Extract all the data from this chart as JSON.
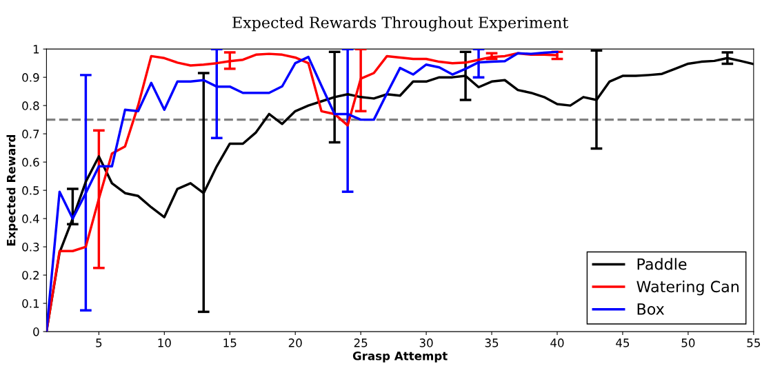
{
  "chart_data": {
    "type": "line",
    "title": "Expected Rewards Throughout Experiment",
    "xlabel": "Grasp Attempt",
    "ylabel": "Expected Reward",
    "x": [
      1,
      2,
      3,
      4,
      5,
      6,
      7,
      8,
      9,
      10,
      11,
      12,
      13,
      14,
      15,
      16,
      17,
      18,
      19,
      20,
      21,
      22,
      23,
      24,
      25,
      26,
      27,
      28,
      29,
      30,
      31,
      32,
      33,
      34,
      35,
      36,
      37,
      38,
      39,
      40,
      41,
      42,
      43,
      44,
      45,
      46,
      47,
      48,
      49,
      50,
      51,
      52,
      53,
      54,
      55
    ],
    "series": [
      {
        "name": "Paddle",
        "color": "#000000",
        "values": [
          0,
          0.28,
          0.4,
          0.53,
          0.62,
          0.525,
          0.49,
          0.48,
          0.44,
          0.405,
          0.505,
          0.525,
          0.49,
          0.585,
          0.665,
          0.665,
          0.705,
          0.77,
          0.735,
          0.78,
          0.8,
          0.815,
          0.83,
          0.84,
          0.83,
          0.825,
          0.84,
          0.835,
          0.885,
          0.885,
          0.9,
          0.9,
          0.905,
          0.865,
          0.885,
          0.89,
          0.855,
          0.845,
          0.83,
          0.805,
          0.8,
          0.83,
          0.82,
          0.885,
          0.905,
          0.905,
          0.908,
          0.912,
          0.93,
          0.948,
          0.955,
          0.958,
          0.968,
          0.958,
          0.947
        ],
        "errors": [
          null,
          null,
          [
            0.38,
            0.505
          ],
          null,
          null,
          null,
          null,
          null,
          null,
          null,
          null,
          null,
          [
            0.07,
            0.915
          ],
          null,
          null,
          null,
          null,
          null,
          null,
          null,
          null,
          null,
          [
            0.67,
            0.99
          ],
          null,
          null,
          null,
          null,
          null,
          null,
          null,
          null,
          null,
          [
            0.82,
            0.99
          ],
          null,
          null,
          null,
          null,
          null,
          null,
          null,
          null,
          null,
          [
            0.648,
            0.995
          ],
          null,
          null,
          null,
          null,
          null,
          null,
          null,
          null,
          null,
          [
            0.948,
            0.988
          ],
          null,
          null
        ]
      },
      {
        "name": "Watering Can",
        "color": "#ff0000",
        "x": [
          1,
          2,
          3,
          4,
          5,
          6,
          7,
          8,
          9,
          10,
          11,
          12,
          13,
          14,
          15,
          16,
          17,
          18,
          19,
          20,
          21,
          22,
          23,
          24,
          25,
          26,
          27,
          28,
          29,
          30,
          31,
          32,
          33,
          34,
          35,
          36,
          37,
          38,
          39,
          40
        ],
        "values": [
          0,
          0.285,
          0.285,
          0.3,
          0.47,
          0.63,
          0.655,
          0.8,
          0.975,
          0.968,
          0.952,
          0.942,
          0.945,
          0.95,
          0.957,
          0.962,
          0.98,
          0.983,
          0.98,
          0.97,
          0.95,
          0.78,
          0.77,
          0.73,
          0.895,
          0.915,
          0.975,
          0.97,
          0.965,
          0.965,
          0.955,
          0.95,
          0.952,
          0.962,
          0.972,
          0.975,
          0.985,
          0.98,
          0.98,
          0.978
        ],
        "errors": [
          null,
          null,
          null,
          null,
          [
            0.225,
            0.712
          ],
          null,
          null,
          null,
          null,
          null,
          null,
          null,
          null,
          null,
          [
            0.93,
            0.988
          ],
          null,
          null,
          null,
          null,
          null,
          null,
          null,
          null,
          null,
          [
            0.78,
            1.0
          ],
          null,
          null,
          null,
          null,
          null,
          null,
          null,
          null,
          null,
          [
            0.965,
            0.985
          ],
          null,
          null,
          null,
          null,
          [
            0.965,
            0.99
          ]
        ]
      },
      {
        "name": "Box",
        "color": "#0000ff",
        "x": [
          1,
          2,
          3,
          4,
          5,
          6,
          7,
          8,
          9,
          10,
          11,
          12,
          13,
          14,
          15,
          16,
          17,
          18,
          19,
          20,
          21,
          22,
          23,
          24,
          25,
          26,
          27,
          28,
          29,
          30,
          31,
          32,
          33,
          34,
          35,
          36,
          37,
          38,
          39,
          40
        ],
        "values": [
          0,
          0.495,
          0.4,
          0.49,
          0.585,
          0.585,
          0.785,
          0.78,
          0.88,
          0.785,
          0.885,
          0.885,
          0.89,
          0.867,
          0.867,
          0.845,
          0.845,
          0.845,
          0.868,
          0.95,
          0.972,
          0.87,
          0.77,
          0.77,
          0.75,
          0.75,
          0.843,
          0.933,
          0.91,
          0.945,
          0.935,
          0.91,
          0.93,
          0.953,
          0.955,
          0.957,
          0.985,
          0.983,
          0.987,
          0.99
        ],
        "errors": [
          null,
          null,
          null,
          [
            0.075,
            0.908
          ],
          null,
          null,
          null,
          null,
          null,
          null,
          null,
          null,
          null,
          [
            0.685,
            1.0
          ],
          null,
          null,
          null,
          null,
          null,
          null,
          null,
          null,
          null,
          [
            0.495,
            1.0
          ],
          null,
          null,
          null,
          null,
          null,
          null,
          null,
          null,
          null,
          [
            0.9,
            1.0
          ],
          null,
          null,
          null,
          null,
          null,
          null
        ]
      }
    ],
    "ref_lines": [
      {
        "axis": "y",
        "value": 0.75,
        "color": "#808080",
        "line_style": "dashed"
      }
    ],
    "xlim": [
      1,
      55
    ],
    "xticks": [
      5,
      10,
      15,
      20,
      25,
      30,
      35,
      40,
      45,
      50,
      55
    ],
    "ylim": [
      0,
      1
    ],
    "yticks": [
      0,
      0.1,
      0.2,
      0.3,
      0.4,
      0.5,
      0.6,
      0.7,
      0.8,
      0.9,
      1
    ],
    "grid": false,
    "legend": "bottom right",
    "line_style": "solid",
    "marker": "none"
  }
}
